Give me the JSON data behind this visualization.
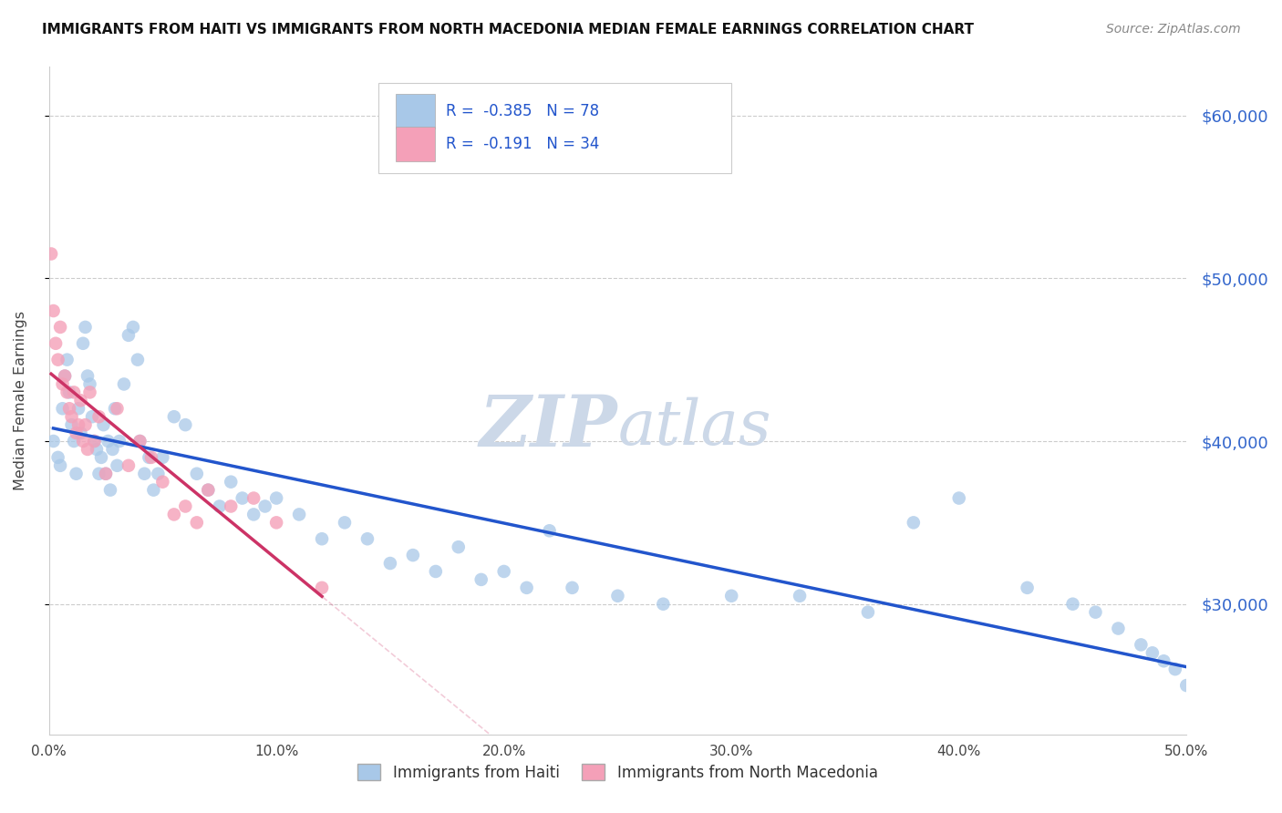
{
  "title": "IMMIGRANTS FROM HAITI VS IMMIGRANTS FROM NORTH MACEDONIA MEDIAN FEMALE EARNINGS CORRELATION CHART",
  "source": "Source: ZipAtlas.com",
  "ylabel": "Median Female Earnings",
  "xlim": [
    0.0,
    0.5
  ],
  "ylim": [
    22000,
    63000
  ],
  "legend_haiti": "Immigrants from Haiti",
  "legend_macedonia": "Immigrants from North Macedonia",
  "R_haiti": -0.385,
  "N_haiti": 78,
  "R_macedonia": -0.191,
  "N_macedonia": 34,
  "haiti_color": "#a8c8e8",
  "macedonia_color": "#f4a0b8",
  "haiti_line_color": "#2255cc",
  "macedonia_line_color": "#cc3366",
  "watermark_color": "#ccd8e8",
  "haiti_x": [
    0.002,
    0.004,
    0.005,
    0.006,
    0.007,
    0.008,
    0.009,
    0.01,
    0.011,
    0.012,
    0.013,
    0.014,
    0.015,
    0.016,
    0.017,
    0.018,
    0.019,
    0.02,
    0.021,
    0.022,
    0.023,
    0.024,
    0.025,
    0.026,
    0.027,
    0.028,
    0.029,
    0.03,
    0.031,
    0.033,
    0.035,
    0.037,
    0.039,
    0.04,
    0.042,
    0.044,
    0.046,
    0.048,
    0.05,
    0.055,
    0.06,
    0.065,
    0.07,
    0.075,
    0.08,
    0.085,
    0.09,
    0.095,
    0.1,
    0.11,
    0.12,
    0.13,
    0.14,
    0.15,
    0.16,
    0.17,
    0.18,
    0.19,
    0.2,
    0.21,
    0.22,
    0.23,
    0.25,
    0.27,
    0.3,
    0.33,
    0.36,
    0.38,
    0.4,
    0.43,
    0.45,
    0.46,
    0.47,
    0.48,
    0.485,
    0.49,
    0.495,
    0.5
  ],
  "haiti_y": [
    40000,
    39000,
    38500,
    42000,
    44000,
    45000,
    43000,
    41000,
    40000,
    38000,
    42000,
    40500,
    46000,
    47000,
    44000,
    43500,
    41500,
    40000,
    39500,
    38000,
    39000,
    41000,
    38000,
    40000,
    37000,
    39500,
    42000,
    38500,
    40000,
    43500,
    46500,
    47000,
    45000,
    40000,
    38000,
    39000,
    37000,
    38000,
    39000,
    41500,
    41000,
    38000,
    37000,
    36000,
    37500,
    36500,
    35500,
    36000,
    36500,
    35500,
    34000,
    35000,
    34000,
    32500,
    33000,
    32000,
    33500,
    31500,
    32000,
    31000,
    34500,
    31000,
    30500,
    30000,
    30500,
    30500,
    29500,
    35000,
    36500,
    31000,
    30000,
    29500,
    28500,
    27500,
    27000,
    26500,
    26000,
    25000
  ],
  "macedonia_x": [
    0.001,
    0.002,
    0.003,
    0.004,
    0.005,
    0.006,
    0.007,
    0.008,
    0.009,
    0.01,
    0.011,
    0.012,
    0.013,
    0.014,
    0.015,
    0.016,
    0.017,
    0.018,
    0.02,
    0.022,
    0.025,
    0.03,
    0.035,
    0.04,
    0.045,
    0.05,
    0.055,
    0.06,
    0.065,
    0.07,
    0.08,
    0.09,
    0.1,
    0.12
  ],
  "macedonia_y": [
    51500,
    48000,
    46000,
    45000,
    47000,
    43500,
    44000,
    43000,
    42000,
    41500,
    43000,
    40500,
    41000,
    42500,
    40000,
    41000,
    39500,
    43000,
    40000,
    41500,
    38000,
    42000,
    38500,
    40000,
    39000,
    37500,
    35500,
    36000,
    35000,
    37000,
    36000,
    36500,
    35000,
    31000
  ]
}
